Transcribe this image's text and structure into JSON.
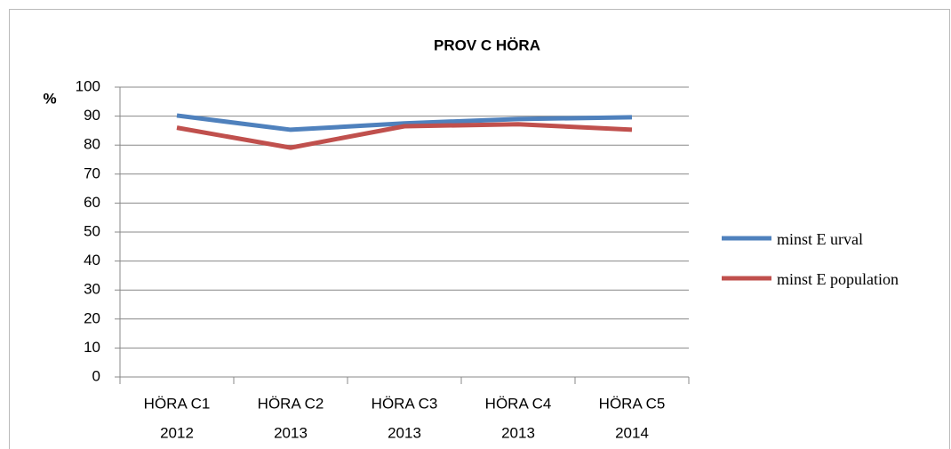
{
  "chart_data": {
    "type": "line",
    "title": "PROV C HÖRA",
    "y_label": "%",
    "categories": [
      [
        "HÖRA C1",
        "2012"
      ],
      [
        "HÖRA C2",
        "2013"
      ],
      [
        "HÖRA C3",
        "2013"
      ],
      [
        "HÖRA C4",
        "2013"
      ],
      [
        "HÖRA C5",
        "2014"
      ]
    ],
    "series": [
      {
        "name": "minst E urval",
        "color": "#4f81bd",
        "values": [
          90.2,
          85.3,
          87.5,
          89,
          89.6
        ]
      },
      {
        "name": "minst E population",
        "color": "#c0504d",
        "values": [
          86,
          79.1,
          86.5,
          87.2,
          85.3
        ]
      }
    ],
    "ylim": [
      0,
      100
    ],
    "yticks": [
      0,
      10,
      20,
      30,
      40,
      50,
      60,
      70,
      80,
      90,
      100
    ],
    "grid": true,
    "legend": "right"
  }
}
